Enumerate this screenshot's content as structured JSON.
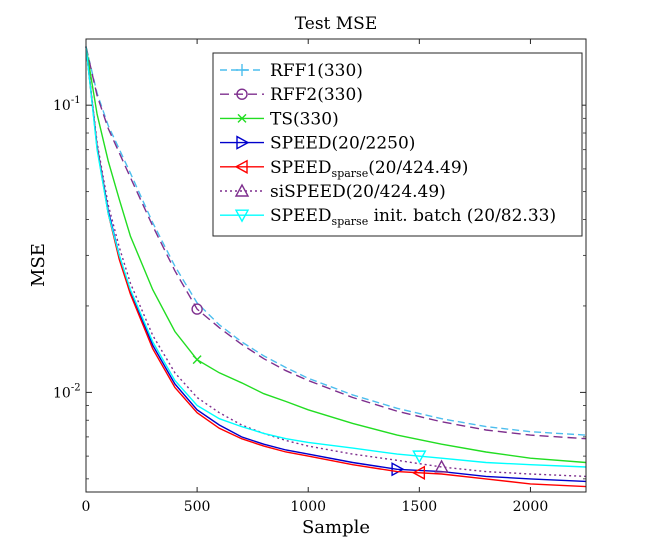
{
  "chart_data": {
    "type": "line",
    "title": "Test MSE",
    "xlabel": "Sample",
    "ylabel": "MSE",
    "xlim": [
      0,
      2250
    ],
    "ylim": [
      0.0045,
      0.17
    ],
    "yscale": "log",
    "x_ticks": [
      {
        "value": 0,
        "label": "0"
      },
      {
        "value": 500,
        "label": "500"
      },
      {
        "value": 1000,
        "label": "1000"
      },
      {
        "value": 1500,
        "label": "1500"
      },
      {
        "value": 2000,
        "label": "2000"
      }
    ],
    "y_ticks": [
      {
        "value": 0.1,
        "base": "10",
        "exp": "-1"
      },
      {
        "value": 0.01,
        "base": "10",
        "exp": "-2"
      }
    ],
    "legend_position": "top-right",
    "series": [
      {
        "id": "rff1",
        "legend_main": "RFF1(330)",
        "legend_sub": "",
        "legend_tail": "",
        "color": "#4dbeee",
        "dash": "7,4",
        "marker": "plus",
        "marker_at": null,
        "x": [
          0,
          50,
          100,
          200,
          300,
          400,
          500,
          600,
          700,
          800,
          900,
          1000,
          1200,
          1400,
          1600,
          1800,
          2000,
          2250
        ],
        "y": [
          0.16,
          0.11,
          0.085,
          0.058,
          0.039,
          0.0275,
          0.0205,
          0.0172,
          0.015,
          0.0134,
          0.0122,
          0.0112,
          0.0098,
          0.0088,
          0.0081,
          0.0076,
          0.0073,
          0.0071
        ]
      },
      {
        "id": "rff2",
        "legend_main": "RFF2(330)",
        "legend_sub": "",
        "legend_tail": "",
        "color": "#7e2f8e",
        "dash": "9,5",
        "marker": "circle",
        "marker_at": 500,
        "x": [
          0,
          50,
          100,
          200,
          300,
          400,
          500,
          600,
          700,
          800,
          900,
          1000,
          1200,
          1400,
          1600,
          1800,
          2000,
          2250
        ],
        "y": [
          0.16,
          0.108,
          0.083,
          0.056,
          0.038,
          0.0265,
          0.0195,
          0.0168,
          0.0147,
          0.0131,
          0.0119,
          0.011,
          0.0096,
          0.0086,
          0.0079,
          0.0074,
          0.0071,
          0.0069
        ]
      },
      {
        "id": "ts",
        "legend_main": "TS(330)",
        "legend_sub": "",
        "legend_tail": "",
        "color": "#22dd22",
        "dash": "",
        "marker": "x",
        "marker_at": 500,
        "x": [
          0,
          50,
          100,
          150,
          200,
          300,
          400,
          500,
          600,
          700,
          800,
          900,
          1000,
          1200,
          1400,
          1600,
          1800,
          2000,
          2250
        ],
        "y": [
          0.16,
          0.093,
          0.064,
          0.047,
          0.035,
          0.0228,
          0.0163,
          0.013,
          0.0117,
          0.0108,
          0.0099,
          0.0093,
          0.0087,
          0.0078,
          0.0071,
          0.0066,
          0.0062,
          0.0059,
          0.0057
        ]
      },
      {
        "id": "speed",
        "legend_main": "SPEED(20/2250)",
        "legend_sub": "",
        "legend_tail": "",
        "color": "#0000cc",
        "dash": "",
        "marker": "tri-right",
        "marker_at": 1400,
        "x": [
          0,
          50,
          100,
          150,
          200,
          300,
          400,
          500,
          600,
          700,
          800,
          900,
          1000,
          1200,
          1400,
          1600,
          1800,
          2000,
          2250
        ],
        "y": [
          0.16,
          0.072,
          0.043,
          0.03,
          0.0225,
          0.0146,
          0.0107,
          0.0087,
          0.0077,
          0.007,
          0.0066,
          0.0063,
          0.0061,
          0.0057,
          0.0054,
          0.0053,
          0.0051,
          0.005,
          0.0049
        ]
      },
      {
        "id": "speed_sparse",
        "legend_main": "SPEED",
        "legend_sub": "sparse",
        "legend_tail": "(20/424.49)",
        "color": "#ff0000",
        "dash": "",
        "marker": "tri-left",
        "marker_at": 1500,
        "x": [
          0,
          50,
          100,
          150,
          200,
          300,
          400,
          500,
          600,
          700,
          800,
          900,
          1000,
          1200,
          1400,
          1600,
          1800,
          2000,
          2250
        ],
        "y": [
          0.16,
          0.071,
          0.042,
          0.029,
          0.022,
          0.0142,
          0.0104,
          0.0085,
          0.0075,
          0.0069,
          0.0065,
          0.0062,
          0.006,
          0.0056,
          0.0053,
          0.0052,
          0.005,
          0.0048,
          0.0047
        ]
      },
      {
        "id": "sispeed",
        "legend_main": "siSPEED(20/424.49)",
        "legend_sub": "",
        "legend_tail": "",
        "color": "#7e2f8e",
        "dash": "2,3",
        "marker": "tri-up",
        "marker_at": 1600,
        "x": [
          0,
          50,
          100,
          150,
          200,
          300,
          400,
          500,
          600,
          700,
          800,
          900,
          1000,
          1200,
          1400,
          1600,
          1800,
          2000,
          2250
        ],
        "y": [
          0.16,
          0.074,
          0.045,
          0.032,
          0.024,
          0.0158,
          0.0117,
          0.0096,
          0.0085,
          0.0077,
          0.0072,
          0.0068,
          0.0065,
          0.0061,
          0.0058,
          0.0055,
          0.0053,
          0.0052,
          0.0051
        ]
      },
      {
        "id": "speed_sparse_init",
        "legend_main": "SPEED",
        "legend_sub": "sparse",
        "legend_tail": " init. batch (20/82.33)",
        "color": "#00ffff",
        "dash": "",
        "marker": "tri-down",
        "marker_at": 1500,
        "x": [
          0,
          50,
          100,
          150,
          200,
          300,
          400,
          500,
          600,
          700,
          800,
          900,
          1000,
          1200,
          1400,
          1600,
          1800,
          2000,
          2250
        ],
        "y": [
          0.16,
          0.07,
          0.042,
          0.03,
          0.0228,
          0.015,
          0.011,
          0.009,
          0.0081,
          0.0076,
          0.0072,
          0.0069,
          0.0067,
          0.0064,
          0.0061,
          0.0059,
          0.0057,
          0.0056,
          0.0055
        ]
      }
    ]
  }
}
